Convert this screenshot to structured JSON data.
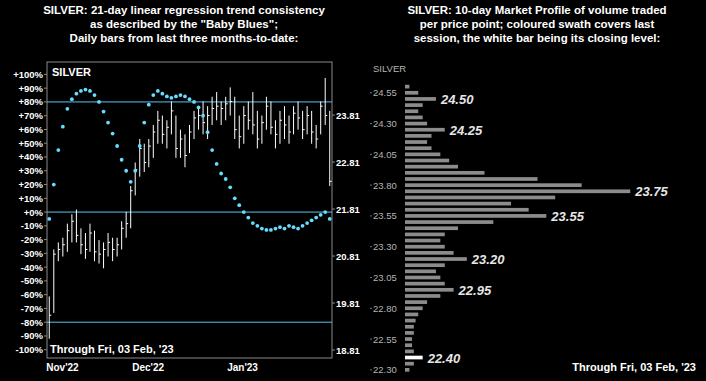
{
  "chart_data": [
    {
      "type": "hlc",
      "title": [
        "SILVER:  21-day linear regression trend consistency",
        "as described by the \"Baby Blues\";",
        "Daily bars from last three months-to-date:"
      ],
      "label": "SILVER",
      "footnote": "Through Fri, 03 Feb, '23",
      "categories": [
        "Nov'22",
        null,
        null,
        null,
        null,
        null,
        null,
        null,
        null,
        null,
        null,
        null,
        null,
        null,
        null,
        null,
        null,
        null,
        null,
        "Dec'22",
        null,
        null,
        null,
        null,
        null,
        null,
        null,
        null,
        null,
        null,
        null,
        null,
        null,
        null,
        null,
        null,
        null,
        null,
        null,
        null,
        "Jan'23",
        null,
        null,
        null,
        null,
        null,
        null,
        null,
        null,
        null,
        null,
        null,
        null,
        null,
        null,
        null,
        null,
        null,
        null,
        null,
        null,
        null,
        null
      ],
      "ylim": [
        -106,
        109
      ],
      "yticks": [
        {
          "value": 100,
          "label": "+100%"
        },
        {
          "value": 90,
          "label": "+90%"
        },
        {
          "value": 80,
          "label": "+80%"
        },
        {
          "value": 70,
          "label": "+70%"
        },
        {
          "value": 60,
          "label": "+60%"
        },
        {
          "value": 50,
          "label": "+50%"
        },
        {
          "value": 40,
          "label": "+40%"
        },
        {
          "value": 30,
          "label": "+30%"
        },
        {
          "value": 20,
          "label": "+20%"
        },
        {
          "value": 10,
          "label": "+10%"
        },
        {
          "value": 0,
          "label": "+0%"
        },
        {
          "value": -10,
          "label": "-10%"
        },
        {
          "value": -20,
          "label": "-20%"
        },
        {
          "value": -30,
          "label": "-30%"
        },
        {
          "value": -40,
          "label": "-40%"
        },
        {
          "value": -50,
          "label": "-50%"
        },
        {
          "value": -60,
          "label": "-60%"
        },
        {
          "value": -70,
          "label": "-70%"
        },
        {
          "value": -80,
          "label": "-80%"
        },
        {
          "value": -90,
          "label": "-90%"
        },
        {
          "value": -100,
          "label": "-100%"
        }
      ],
      "y2lim": [
        18.64,
        24.94
      ],
      "y2ticks": [
        23.81,
        22.81,
        21.81,
        20.81,
        19.81,
        18.81
      ],
      "reference_lines": {
        "values": [
          80,
          0,
          -80
        ],
        "color": "#56c4f2"
      },
      "series": [
        {
          "type": "scatter",
          "marker": "circle",
          "color": "#66dcff",
          "values": [
            -5,
            20,
            45,
            62,
            75,
            82,
            86,
            88,
            89,
            88,
            85,
            80,
            73,
            65,
            57,
            48,
            38,
            30,
            22,
            30,
            48,
            65,
            78,
            85,
            88,
            86,
            84,
            83,
            84,
            85,
            84,
            82,
            80,
            76,
            70,
            58,
            45,
            35,
            28,
            24,
            18,
            10,
            5,
            0,
            -4,
            -8,
            -10,
            -12,
            -13,
            -13,
            -12,
            -11,
            -12,
            -10,
            -11,
            -12,
            -10,
            -8,
            -6,
            -4,
            -2,
            0,
            -5
          ]
        },
        {
          "type": "hlc",
          "axis": "y2",
          "color": "#ffffff",
          "high": [
            19.95,
            20.95,
            21.1,
            21.2,
            21.5,
            21.7,
            21.8,
            21.4,
            21.3,
            21.5,
            21.35,
            21.15,
            21.1,
            21.3,
            21.2,
            21.2,
            21.55,
            21.75,
            22.3,
            22.8,
            23.3,
            23.2,
            23.3,
            23.6,
            23.9,
            23.8,
            23.7,
            24.1,
            23.8,
            23.5,
            23.4,
            23.6,
            23.9,
            24.0,
            24.1,
            24.0,
            24.2,
            24.3,
            24.1,
            24.2,
            24.4,
            24.2,
            23.8,
            24.0,
            24.1,
            24.3,
            23.9,
            23.8,
            24.2,
            24.1,
            23.7,
            23.9,
            24.0,
            23.8,
            24.0,
            24.1,
            23.9,
            24.0,
            23.9,
            23.6,
            24.1,
            24.6,
            23.9
          ],
          "low": [
            19.05,
            19.6,
            20.7,
            20.8,
            20.9,
            21.1,
            21.1,
            20.85,
            20.75,
            20.9,
            20.7,
            20.65,
            20.55,
            20.8,
            20.7,
            20.8,
            20.95,
            21.2,
            21.4,
            22.1,
            22.5,
            22.6,
            22.7,
            22.9,
            23.2,
            23.2,
            23.1,
            23.4,
            22.9,
            22.9,
            22.7,
            23.0,
            23.3,
            23.5,
            23.4,
            23.3,
            23.6,
            23.7,
            23.6,
            23.7,
            23.8,
            23.3,
            23.1,
            23.2,
            23.5,
            23.4,
            23.1,
            23.2,
            23.5,
            23.4,
            23.1,
            23.2,
            23.3,
            23.2,
            23.4,
            23.5,
            23.3,
            23.4,
            23.2,
            23.1,
            23.4,
            23.6,
            22.3
          ],
          "close": [
            19.55,
            20.85,
            20.95,
            21.05,
            21.35,
            21.55,
            21.25,
            21.05,
            20.95,
            21.3,
            20.9,
            20.85,
            20.95,
            21.1,
            20.95,
            21.05,
            21.4,
            21.5,
            22.2,
            22.65,
            23.1,
            22.8,
            23.15,
            23.45,
            23.7,
            23.4,
            23.55,
            23.9,
            23.1,
            23.3,
            22.95,
            23.45,
            23.75,
            23.8,
            23.65,
            23.8,
            23.95,
            24.0,
            23.95,
            24.05,
            24.1,
            23.5,
            23.35,
            23.8,
            23.7,
            23.6,
            23.3,
            23.65,
            24.0,
            23.55,
            23.4,
            23.7,
            23.6,
            23.45,
            23.85,
            23.75,
            23.5,
            23.8,
            23.45,
            23.3,
            24.0,
            23.8,
            22.4
          ]
        }
      ]
    },
    {
      "type": "bar",
      "orientation": "horizontal",
      "title": [
        "SILVER:  10-day Market Profile of volume traded",
        "per price point; coloured swath covers last",
        "session, the white bar being its closing level:"
      ],
      "label": "SILVER",
      "footnote": "Through Fri, 03 Feb, '23",
      "y": [
        24.6,
        24.55,
        24.5,
        24.45,
        24.4,
        24.35,
        24.3,
        24.25,
        24.2,
        24.15,
        24.1,
        24.05,
        24,
        23.95,
        23.9,
        23.85,
        23.8,
        23.75,
        23.7,
        23.65,
        23.6,
        23.55,
        23.5,
        23.45,
        23.4,
        23.35,
        23.3,
        23.25,
        23.2,
        23.15,
        23.1,
        23.05,
        23,
        22.95,
        22.9,
        22.85,
        22.8,
        22.75,
        22.7,
        22.65,
        22.6,
        22.55,
        22.5,
        22.45,
        22.4,
        22.35,
        22.3
      ],
      "values": [
        5,
        15,
        35,
        20,
        15,
        20,
        25,
        45,
        30,
        25,
        30,
        40,
        50,
        60,
        90,
        150,
        200,
        255,
        170,
        120,
        140,
        160,
        100,
        60,
        45,
        40,
        45,
        55,
        70,
        45,
        35,
        40,
        45,
        55,
        40,
        25,
        20,
        15,
        12,
        10,
        10,
        8,
        8,
        10,
        20,
        10,
        5
      ],
      "colors": [
        "#8c8c8c",
        "#8c8c8c",
        "#8c8c8c",
        "#8c8c8c",
        "#8c8c8c",
        "#8c8c8c",
        "#8c8c8c",
        "#8c8c8c",
        "#8c8c8c",
        "#8c8c8c",
        "#8c8c8c",
        "#8c8c8c",
        "#8c8c8c",
        "#8c8c8c",
        "#8c8c8c",
        "#8c8c8c",
        "#8c8c8c",
        "#8c8c8c",
        "#8c8c8c",
        "#8c8c8c",
        "#8c8c8c",
        "#8c8c8c",
        "#8c8c8c",
        "#8c8c8c",
        "#8c8c8c",
        "#8c8c8c",
        "#8c8c8c",
        "#8c8c8c",
        "#8c8c8c",
        "#8c8c8c",
        "#8c8c8c",
        "#8c8c8c",
        "#8c8c8c",
        "#8c8c8c",
        "#8c8c8c",
        "#8c8c8c",
        "#8c8c8c",
        "#8c8c8c",
        "#8c8c8c",
        "#8c8c8c",
        "#8c8c8c",
        "#8c8c8c",
        "#8c8c8c",
        "#8c8c8c",
        "#ffffff",
        "#8c8c8c",
        "#8c8c8c"
      ],
      "ylim": [
        22.25,
        24.8
      ],
      "yticks": [
        24.55,
        {
          "value": 24.3,
          "label": "24.30"
        },
        24.05,
        {
          "value": 23.8,
          "label": "23.80"
        },
        23.55,
        {
          "value": 23.3,
          "label": "23.30"
        },
        23.05,
        {
          "value": 22.8,
          "label": "22.80"
        },
        22.55,
        {
          "value": 22.3,
          "label": "22.30"
        }
      ],
      "xlim": [
        0,
        300
      ],
      "tick_labels": "y",
      "annotations": [
        {
          "value": 24.5,
          "label": "24.50"
        },
        {
          "value": 24.25,
          "label": "24.25"
        },
        {
          "value": 23.75,
          "label": "23.75"
        },
        {
          "value": 23.55,
          "label": "23.55"
        },
        {
          "value": 23.2,
          "label": "23.20"
        },
        {
          "value": 22.95,
          "label": "22.95"
        },
        {
          "value": 22.4,
          "label": "22.40"
        }
      ]
    }
  ]
}
